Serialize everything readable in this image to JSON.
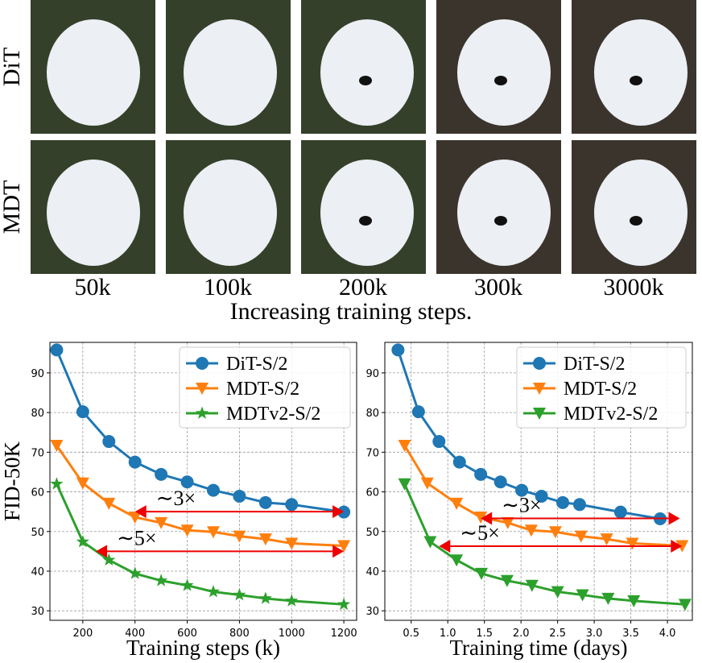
{
  "figure": {
    "rows": [
      "DiT",
      "MDT"
    ],
    "columns": [
      "50k",
      "100k",
      "200k",
      "300k",
      "3000k"
    ],
    "caption": "Increasing training steps."
  },
  "chart_data": [
    {
      "type": "line",
      "xlabel": "Training steps (k)",
      "ylabel": "FID-50K",
      "xlim": [
        74,
        1249
      ],
      "ylim": [
        27.6,
        97.7
      ],
      "xticks": [
        200,
        400,
        600,
        800,
        1000,
        1200
      ],
      "yticks": [
        30,
        40,
        50,
        60,
        70,
        80,
        90
      ],
      "grid": true,
      "legend": "upper right",
      "x": [
        100,
        200,
        300,
        400,
        500,
        600,
        700,
        800,
        900,
        1000,
        1200
      ],
      "series": [
        {
          "name": "DiT-S/2",
          "color": "#1f77b4",
          "marker": "circle",
          "values": [
            95.8,
            80.2,
            72.7,
            67.5,
            64.4,
            62.5,
            60.4,
            58.9,
            57.3,
            56.8,
            54.9
          ]
        },
        {
          "name": "MDT-S/2",
          "color": "#ff7f0e",
          "marker": "triangle-down",
          "values": [
            71.7,
            62.2,
            57.1,
            53.6,
            52.2,
            50.3,
            49.9,
            48.8,
            48.1,
            47.0,
            46.4
          ]
        },
        {
          "name": "MDTv2-S/2",
          "color": "#2ca02c",
          "marker": "star",
          "values": [
            62.0,
            47.4,
            42.8,
            39.4,
            37.6,
            36.4,
            34.8,
            34.0,
            33.1,
            32.5,
            31.6
          ]
        }
      ],
      "annotations": [
        {
          "text": "∼3×",
          "x": [
            400,
            1200
          ],
          "y": 55
        },
        {
          "text": "∼5×",
          "x": [
            250,
            1200
          ],
          "y": 45
        }
      ]
    },
    {
      "type": "line",
      "xlabel": "Training time (days)",
      "xlim": [
        0.14,
        4.34
      ],
      "ylim": [
        27.6,
        97.7
      ],
      "xticks": [
        0.5,
        {
          "value": 1,
          "label": "1.0"
        },
        1.5,
        {
          "value": 2,
          "label": "2.0"
        },
        2.5,
        {
          "value": 3,
          "label": "3.0"
        },
        3.5,
        {
          "value": 4,
          "label": "4.0"
        }
      ],
      "yticks": [
        30,
        40,
        50,
        60,
        70,
        80,
        90
      ],
      "grid": true,
      "legend": "upper right",
      "series": [
        {
          "name": "DiT-S/2",
          "color": "#1f77b4",
          "marker": "circle",
          "x": [
            0.32,
            0.6,
            0.88,
            1.16,
            1.45,
            1.72,
            2.01,
            2.28,
            2.57,
            2.8,
            3.36,
            3.9
          ],
          "values": [
            95.8,
            80.2,
            72.7,
            67.5,
            64.4,
            62.5,
            60.4,
            58.9,
            57.3,
            56.8,
            54.9,
            53.2
          ]
        },
        {
          "name": "MDT-S/2",
          "color": "#ff7f0e",
          "marker": "triangle-down",
          "x": [
            0.41,
            0.72,
            1.12,
            1.45,
            1.82,
            2.14,
            2.47,
            2.82,
            3.17,
            3.52,
            4.2
          ],
          "values": [
            71.7,
            62.2,
            57.1,
            53.6,
            52.2,
            50.3,
            49.9,
            48.8,
            48.1,
            47.0,
            46.4
          ]
        },
        {
          "name": "MDTv2-S/2",
          "color": "#2ca02c",
          "marker": "triangle-down",
          "x": [
            0.41,
            0.76,
            1.12,
            1.46,
            1.81,
            2.15,
            2.5,
            2.84,
            3.19,
            3.54,
            4.24
          ],
          "values": [
            62.0,
            47.4,
            42.8,
            39.4,
            37.6,
            36.4,
            34.8,
            34.0,
            33.1,
            32.5,
            31.6
          ]
        }
      ],
      "annotations": [
        {
          "text": "∼3×",
          "x": [
            1.45,
            4.17
          ],
          "y": 53.3
        },
        {
          "text": "∼5×",
          "x": [
            0.88,
            4.2
          ],
          "y": 46.3
        }
      ]
    }
  ]
}
